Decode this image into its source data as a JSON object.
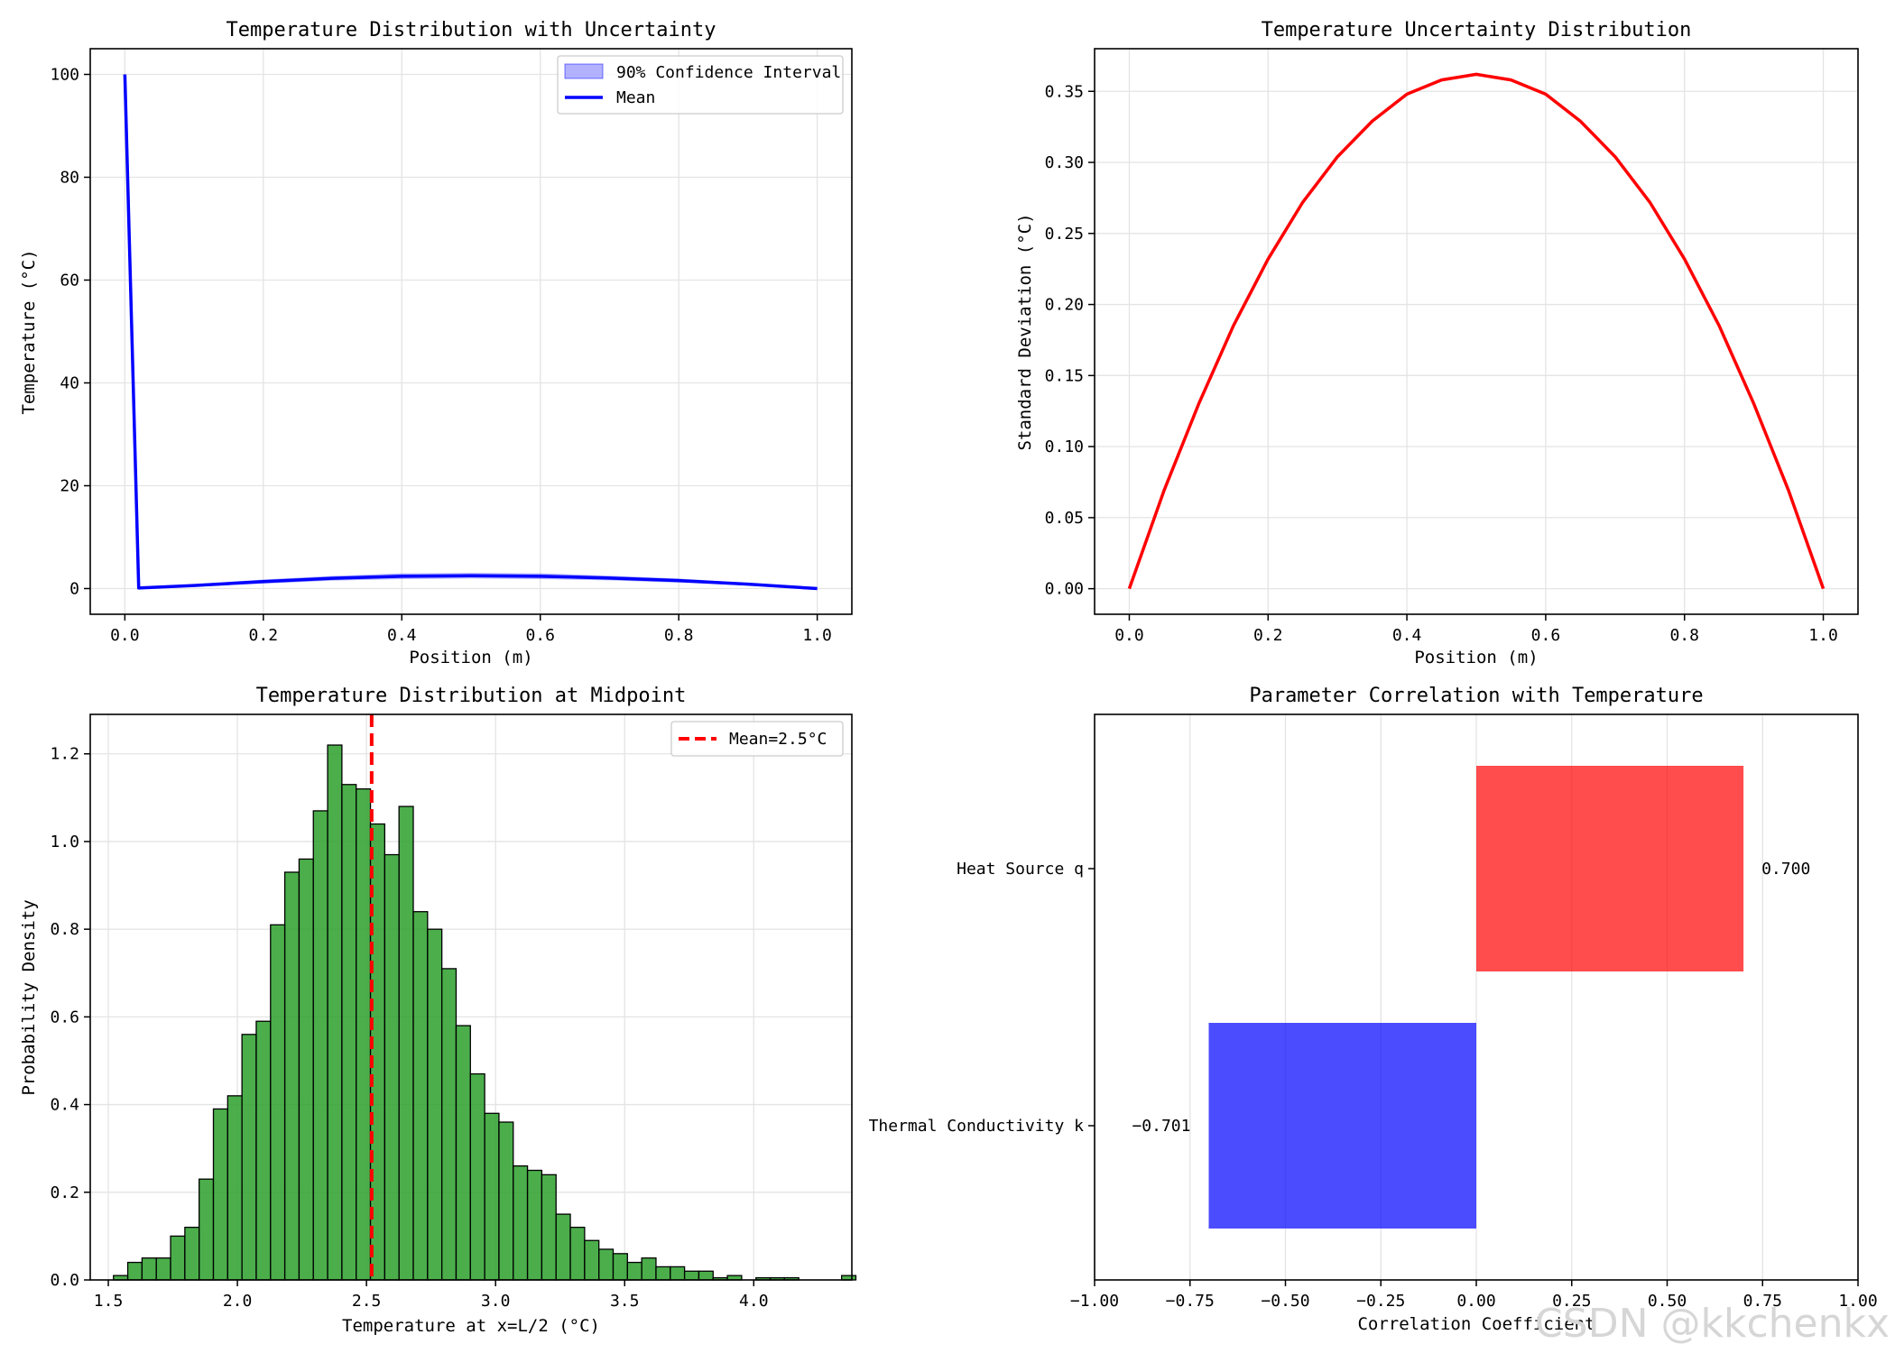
{
  "watermark": "CSDN @kkchenkx",
  "chart_data": [
    {
      "type": "line",
      "title": "Temperature Distribution with Uncertainty",
      "xlabel": "Position (m)",
      "ylabel": "Temperature (°C)",
      "xlim": [
        -0.05,
        1.05
      ],
      "ylim": [
        -5,
        105
      ],
      "xticks": [
        "0.0",
        "0.2",
        "0.4",
        "0.6",
        "0.8",
        "1.0"
      ],
      "yticks": [
        "0",
        "20",
        "40",
        "60",
        "80",
        "100"
      ],
      "grid": true,
      "legend": {
        "position": "top-right",
        "entries": [
          "90% Confidence Interval",
          "Mean"
        ]
      },
      "series": [
        {
          "name": "Mean",
          "color": "#0000ff",
          "x": [
            0.0,
            0.02,
            0.1,
            0.2,
            0.3,
            0.4,
            0.5,
            0.6,
            0.7,
            0.8,
            0.9,
            1.0
          ],
          "y": [
            100,
            0.12,
            0.6,
            1.35,
            2.0,
            2.4,
            2.5,
            2.4,
            2.05,
            1.55,
            0.85,
            0.0
          ]
        },
        {
          "name": "90% Confidence Interval",
          "color": "#0000ff",
          "x": [
            0.02,
            0.1,
            0.2,
            0.3,
            0.4,
            0.5,
            0.6,
            0.7,
            0.8,
            0.9,
            1.0
          ],
          "lower": [
            0.05,
            0.35,
            0.95,
            1.55,
            1.85,
            1.95,
            1.85,
            1.6,
            1.15,
            0.6,
            0.0
          ],
          "upper": [
            0.2,
            0.85,
            1.75,
            2.45,
            2.95,
            3.05,
            2.95,
            2.5,
            1.95,
            1.1,
            0.0
          ]
        }
      ]
    },
    {
      "type": "line",
      "title": "Temperature Uncertainty Distribution",
      "xlabel": "Position (m)",
      "ylabel": "Standard Deviation (°C)",
      "xlim": [
        -0.05,
        1.05
      ],
      "ylim": [
        -0.018,
        0.38
      ],
      "xticks": [
        "0.0",
        "0.2",
        "0.4",
        "0.6",
        "0.8",
        "1.0"
      ],
      "yticks": [
        "0.00",
        "0.05",
        "0.10",
        "0.15",
        "0.20",
        "0.25",
        "0.30",
        "0.35"
      ],
      "grid": true,
      "series": [
        {
          "name": "Standard Deviation",
          "color": "#ff0000",
          "x": [
            0.0,
            0.05,
            0.1,
            0.15,
            0.2,
            0.25,
            0.3,
            0.35,
            0.4,
            0.45,
            0.5,
            0.55,
            0.6,
            0.65,
            0.7,
            0.75,
            0.8,
            0.85,
            0.9,
            0.95,
            1.0
          ],
          "y": [
            0.0,
            0.069,
            0.13,
            0.185,
            0.232,
            0.272,
            0.304,
            0.329,
            0.348,
            0.358,
            0.362,
            0.358,
            0.348,
            0.329,
            0.304,
            0.272,
            0.232,
            0.185,
            0.13,
            0.069,
            0.0
          ]
        }
      ]
    },
    {
      "type": "bar",
      "subtype": "histogram",
      "title": "Temperature Distribution at Midpoint",
      "xlabel": "Temperature at x=L/2 (°C)",
      "ylabel": "Probability Density",
      "xlim": [
        1.43,
        4.38
      ],
      "ylim": [
        0,
        1.29
      ],
      "xticks": [
        "1.5",
        "2.0",
        "2.5",
        "3.0",
        "3.5",
        "4.0"
      ],
      "yticks": [
        "0.0",
        "0.2",
        "0.4",
        "0.6",
        "0.8",
        "1.0",
        "1.2"
      ],
      "grid": true,
      "bin_start": 1.52,
      "bin_width": 0.0553,
      "bar_color": "#2ca02c",
      "values": [
        0.01,
        0.04,
        0.05,
        0.05,
        0.1,
        0.12,
        0.23,
        0.39,
        0.42,
        0.56,
        0.59,
        0.81,
        0.93,
        0.96,
        1.07,
        1.22,
        1.13,
        1.12,
        1.04,
        0.97,
        1.08,
        0.84,
        0.8,
        0.71,
        0.58,
        0.47,
        0.38,
        0.36,
        0.26,
        0.25,
        0.24,
        0.15,
        0.12,
        0.09,
        0.07,
        0.06,
        0.04,
        0.05,
        0.03,
        0.03,
        0.02,
        0.02,
        0.005,
        0.01,
        0.0,
        0.005,
        0.005,
        0.005,
        0.0,
        0.0,
        0.0,
        0.01
      ],
      "mean_line": {
        "x": 2.52,
        "color": "#ff0000"
      },
      "legend": {
        "position": "top-right",
        "entries": [
          "Mean=2.5°C"
        ]
      }
    },
    {
      "type": "bar",
      "orientation": "horizontal",
      "title": "Parameter Correlation with Temperature",
      "xlabel": "Correlation Coefficient",
      "xlim": [
        -1.0,
        1.0
      ],
      "xticks": [
        "−1.00",
        "−0.75",
        "−0.50",
        "−0.25",
        "0.00",
        "0.25",
        "0.50",
        "0.75",
        "1.00"
      ],
      "grid": true,
      "categories": [
        "Thermal Conductivity k",
        "Heat Source q"
      ],
      "values": [
        -0.701,
        0.7
      ],
      "value_labels": [
        "−0.701",
        "0.700"
      ],
      "colors": [
        "#0000ff",
        "#ff0000"
      ]
    }
  ]
}
